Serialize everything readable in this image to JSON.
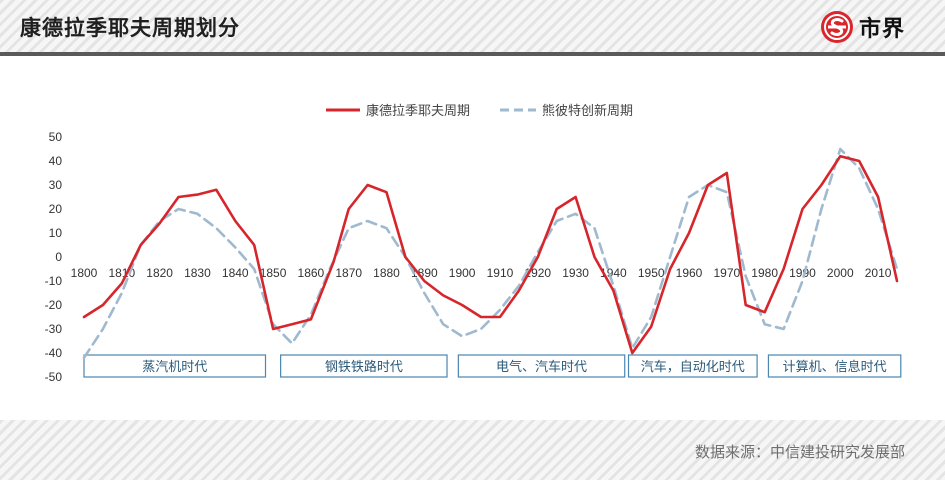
{
  "header": {
    "title": "康德拉季耶夫周期划分",
    "brand_name": "市界",
    "brand_icon": "s-coin-logo-icon",
    "brand_color": "#d9262c"
  },
  "footer": {
    "source": "数据来源：中信建投研究发展部"
  },
  "chart_data": {
    "type": "line",
    "title": "",
    "xlabel": "",
    "ylabel": "",
    "xlim": [
      1800,
      2015
    ],
    "ylim": [
      -50,
      50
    ],
    "y_ticks": [
      50,
      40,
      30,
      20,
      10,
      0,
      -10,
      -20,
      -30,
      -40,
      -50
    ],
    "x_ticks": [
      1800,
      1810,
      1820,
      1830,
      1840,
      1850,
      1860,
      1870,
      1880,
      1890,
      1900,
      1910,
      1920,
      1930,
      1940,
      1950,
      1960,
      1970,
      1980,
      1990,
      2000,
      2010
    ],
    "grid": false,
    "legend_position": "top-center",
    "series": [
      {
        "name": "康德拉季耶夫周期",
        "color": "#d7262b",
        "style": "solid",
        "points": [
          [
            1800,
            -25
          ],
          [
            1805,
            -20
          ],
          [
            1810,
            -11
          ],
          [
            1815,
            5
          ],
          [
            1820,
            14
          ],
          [
            1825,
            25
          ],
          [
            1830,
            26
          ],
          [
            1835,
            28
          ],
          [
            1840,
            15
          ],
          [
            1845,
            5
          ],
          [
            1850,
            -30
          ],
          [
            1855,
            -28
          ],
          [
            1860,
            -26
          ],
          [
            1866,
            -2
          ],
          [
            1870,
            20
          ],
          [
            1875,
            30
          ],
          [
            1880,
            27
          ],
          [
            1885,
            0
          ],
          [
            1890,
            -10
          ],
          [
            1895,
            -16
          ],
          [
            1900,
            -20
          ],
          [
            1905,
            -25
          ],
          [
            1910,
            -25
          ],
          [
            1915,
            -14
          ],
          [
            1920,
            0
          ],
          [
            1925,
            20
          ],
          [
            1930,
            25
          ],
          [
            1935,
            0
          ],
          [
            1940,
            -14
          ],
          [
            1945,
            -40
          ],
          [
            1950,
            -29
          ],
          [
            1955,
            -5
          ],
          [
            1960,
            10
          ],
          [
            1965,
            30
          ],
          [
            1970,
            35
          ],
          [
            1975,
            -20
          ],
          [
            1980,
            -23
          ],
          [
            1985,
            -5
          ],
          [
            1990,
            20
          ],
          [
            1995,
            30
          ],
          [
            2000,
            42
          ],
          [
            2005,
            40
          ],
          [
            2010,
            25
          ],
          [
            2015,
            -10
          ]
        ]
      },
      {
        "name": "熊彼特创新周期",
        "color": "#9fb9cf",
        "style": "dashed",
        "points": [
          [
            1800,
            -42
          ],
          [
            1805,
            -30
          ],
          [
            1810,
            -15
          ],
          [
            1815,
            5
          ],
          [
            1820,
            15
          ],
          [
            1825,
            20
          ],
          [
            1830,
            18
          ],
          [
            1835,
            12
          ],
          [
            1840,
            4
          ],
          [
            1845,
            -5
          ],
          [
            1850,
            -28
          ],
          [
            1855,
            -36
          ],
          [
            1860,
            -24
          ],
          [
            1865,
            -5
          ],
          [
            1870,
            12
          ],
          [
            1875,
            15
          ],
          [
            1880,
            12
          ],
          [
            1885,
            0
          ],
          [
            1890,
            -15
          ],
          [
            1895,
            -28
          ],
          [
            1900,
            -33
          ],
          [
            1905,
            -30
          ],
          [
            1910,
            -22
          ],
          [
            1915,
            -12
          ],
          [
            1920,
            2
          ],
          [
            1925,
            15
          ],
          [
            1930,
            18
          ],
          [
            1935,
            12
          ],
          [
            1940,
            -12
          ],
          [
            1945,
            -38
          ],
          [
            1950,
            -25
          ],
          [
            1955,
            0
          ],
          [
            1960,
            25
          ],
          [
            1965,
            30
          ],
          [
            1970,
            27
          ],
          [
            1975,
            -8
          ],
          [
            1980,
            -28
          ],
          [
            1985,
            -30
          ],
          [
            1990,
            -10
          ],
          [
            1995,
            20
          ],
          [
            2000,
            45
          ],
          [
            2005,
            37
          ],
          [
            2010,
            20
          ],
          [
            2015,
            -5
          ]
        ]
      }
    ],
    "eras": [
      {
        "label": "蒸汽机时代",
        "from": 1800,
        "to": 1848
      },
      {
        "label": "钢铁铁路时代",
        "from": 1852,
        "to": 1896
      },
      {
        "label": "电气、汽车时代",
        "from": 1899,
        "to": 1943
      },
      {
        "label": "汽车，自动化时代",
        "from": 1944,
        "to": 1978
      },
      {
        "label": "计算机、信息时代",
        "from": 1981,
        "to": 2016
      }
    ]
  }
}
